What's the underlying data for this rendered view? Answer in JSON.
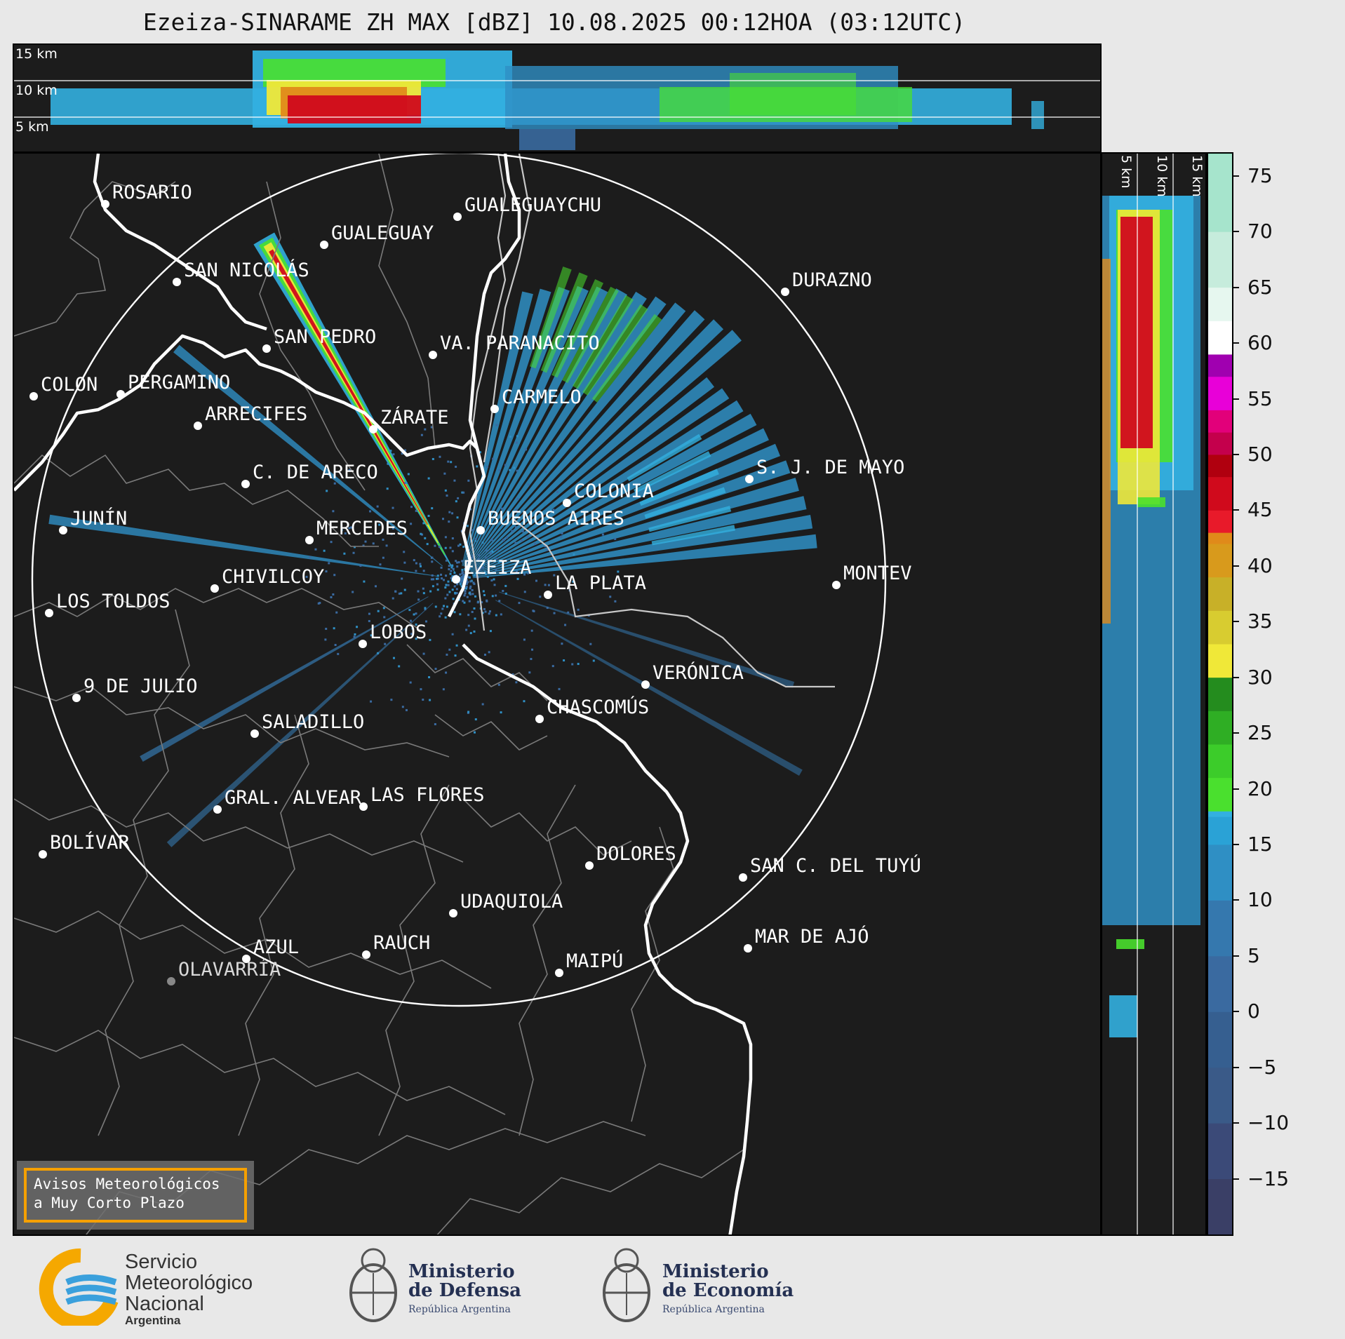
{
  "title": "Ezeiza-SINARAME ZH MAX [dBZ] 10.08.2025 00:12HOA (03:12UTC)",
  "top_panel": {
    "altitudes": [
      "15 km",
      "10 km",
      "5 km"
    ]
  },
  "side_panel": {
    "altitudes": [
      "5 km",
      "10 km",
      "15 km"
    ]
  },
  "colorbar": {
    "unit": "dBZ",
    "ticks": [
      "75",
      "70",
      "65",
      "60",
      "55",
      "50",
      "45",
      "40",
      "35",
      "30",
      "25",
      "20",
      "15",
      "10",
      "5",
      "0",
      "−5",
      "−10",
      "−15"
    ],
    "range": [
      -20,
      77
    ],
    "colors": {
      "very_low": "#39406b",
      "low": "#3b6aa0",
      "mid_blue": "#2f8fc4",
      "light_blue": "#33b0e0",
      "green_light": "#4ae02e",
      "green_dark": "#1f7a1e",
      "yellow": "#f0e838",
      "orange": "#e08a1a",
      "red": "#d00a1c",
      "magenta": "#e000d8",
      "purple": "#9a0aa8",
      "white": "#ffffff",
      "teal": "#8fe0c0"
    }
  },
  "map": {
    "radar_site": "EZEIZA",
    "cities": [
      {
        "name": "ROSARIO"
      },
      {
        "name": "GUALEGUAYCHU"
      },
      {
        "name": "GUALEGUAY"
      },
      {
        "name": "SAN NICOLÁS"
      },
      {
        "name": "DURAZNO"
      },
      {
        "name": "SAN PEDRO"
      },
      {
        "name": "VA. PARANACITO"
      },
      {
        "name": "COLON"
      },
      {
        "name": "PERGAMINO"
      },
      {
        "name": "CARMELO"
      },
      {
        "name": "ARRECIFES"
      },
      {
        "name": "ZÁRATE"
      },
      {
        "name": "S. J. DE MAYO"
      },
      {
        "name": "C. DE ARECO"
      },
      {
        "name": "COLONIA"
      },
      {
        "name": "JUNÍN"
      },
      {
        "name": "MERCEDES"
      },
      {
        "name": "BUENOS AIRES"
      },
      {
        "name": "MONTEV"
      },
      {
        "name": "EZEIZA"
      },
      {
        "name": "CHIVILCOY"
      },
      {
        "name": "LA PLATA"
      },
      {
        "name": "LOS TOLDOS"
      },
      {
        "name": "LOBOS"
      },
      {
        "name": "VERÓNICA"
      },
      {
        "name": "9 DE JULIO"
      },
      {
        "name": "CHASCOMÚS"
      },
      {
        "name": "SALADILLO"
      },
      {
        "name": "GRAL. ALVEAR"
      },
      {
        "name": "LAS FLORES"
      },
      {
        "name": "BOLÍVAR"
      },
      {
        "name": "DOLORES"
      },
      {
        "name": "SAN C. DEL TUYÚ"
      },
      {
        "name": "UDAQUIOLA"
      },
      {
        "name": "MAR DE AJÓ"
      },
      {
        "name": "AZUL"
      },
      {
        "name": "RAUCH"
      },
      {
        "name": "MAIPÚ"
      },
      {
        "name": "OLAVARRÍA"
      }
    ]
  },
  "notice": {
    "line1": "Avisos Meteorológicos",
    "line2": "a Muy Corto Plazo"
  },
  "logos": {
    "smn": {
      "line1": "Servicio",
      "line2": "Meteorológico",
      "line3": "Nacional",
      "line4": "Argentina"
    },
    "defensa": {
      "line1": "Ministerio",
      "line2": "de Defensa",
      "line3": "República Argentina"
    },
    "economia": {
      "line1": "Ministerio",
      "line2": "de Economía",
      "line3": "República Argentina"
    }
  }
}
